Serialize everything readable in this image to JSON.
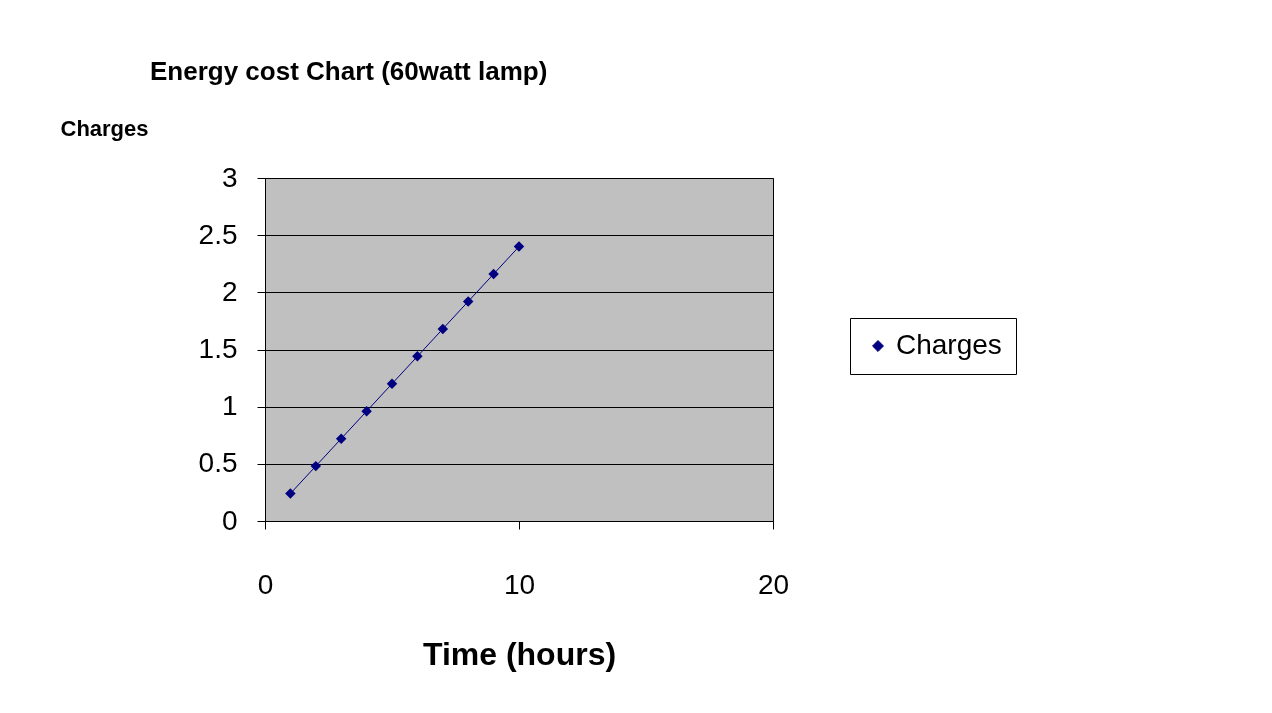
{
  "chart_data": {
    "type": "line",
    "title": "Energy cost Chart (60watt lamp)",
    "xlabel": "Time (hours)",
    "ylabel": "Charges",
    "x": [
      1,
      2,
      3,
      4,
      5,
      6,
      7,
      8,
      9,
      10
    ],
    "series": [
      {
        "name": "Charges",
        "color": "#000080",
        "values": [
          0.24,
          0.48,
          0.72,
          0.96,
          1.2,
          1.44,
          1.68,
          1.92,
          2.16,
          2.4
        ]
      }
    ],
    "xlim": [
      0,
      20
    ],
    "xticks": [
      0,
      10,
      20
    ],
    "ylim": [
      0,
      3
    ],
    "yticks": [
      0,
      0.5,
      1,
      1.5,
      2,
      2.5,
      3
    ],
    "grid": "y",
    "legend": "right",
    "marker": "diamond",
    "line_style": "solid"
  }
}
